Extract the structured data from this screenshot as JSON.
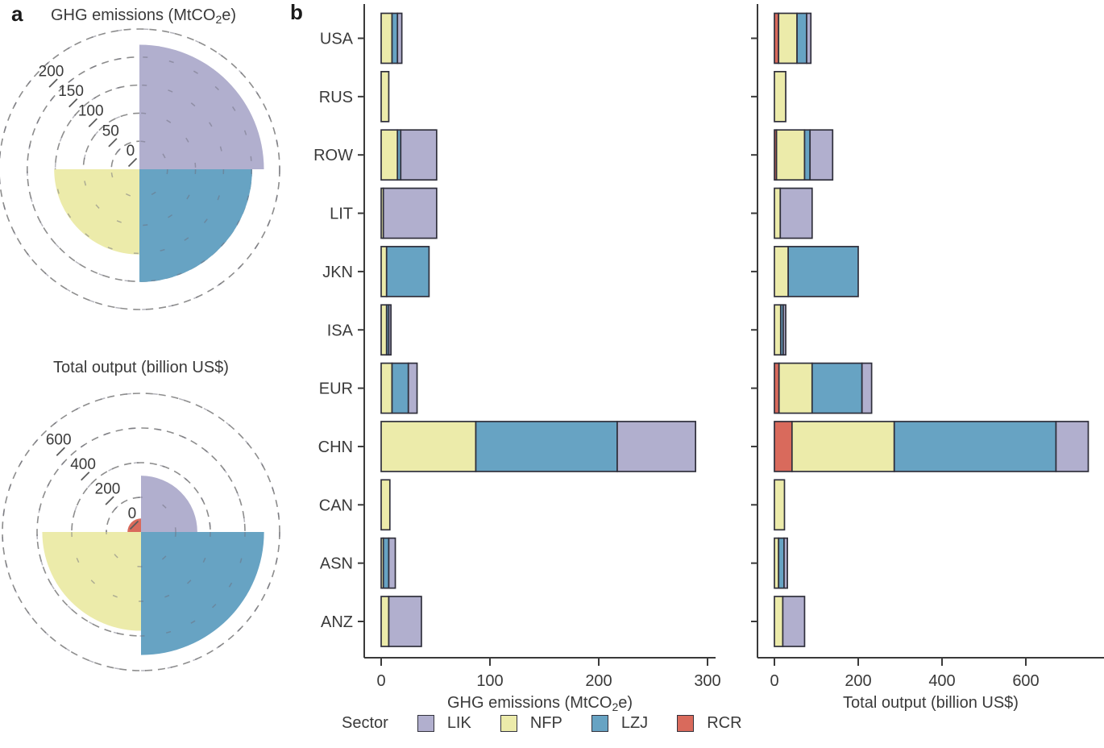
{
  "panels": {
    "a_label": "a",
    "b_label": "b"
  },
  "colors": {
    "LIK": "#b1afce",
    "NFP": "#ecebaa",
    "LZJ": "#67a3c3",
    "RCR": "#d96a5c",
    "bar_border": "#2f2f3b",
    "axis": "#3a3a3a",
    "grid": "#8d8d8d",
    "text": "#3a3a3a"
  },
  "legend": {
    "title": "Sector",
    "entries": [
      {
        "label": "LIK",
        "color": "LIK"
      },
      {
        "label": "NFP",
        "color": "NFP"
      },
      {
        "label": "LZJ",
        "color": "LZJ"
      },
      {
        "label": "RCR",
        "color": "RCR"
      }
    ]
  },
  "chart_data": [
    {
      "id": "rose-ghg",
      "type": "polar-bar",
      "title": {
        "pre": "GHG emissions (MtCO",
        "sub": "2",
        "post": "e)"
      },
      "tick_values": [
        0,
        50,
        100,
        150,
        200
      ],
      "outer_ring": 250,
      "grid": "dashed",
      "sectors": [
        {
          "name": "LIK",
          "quadrant": "N-E",
          "value": 222
        },
        {
          "name": "LZJ",
          "quadrant": "E-S",
          "value": 201
        },
        {
          "name": "NFP",
          "quadrant": "S-W",
          "value": 152
        },
        {
          "name": "RCR",
          "quadrant": "W-N",
          "value": 0
        }
      ]
    },
    {
      "id": "rose-output",
      "type": "polar-bar",
      "title": {
        "pre": "Total output (billion US$)",
        "sub": "",
        "post": ""
      },
      "tick_values": [
        0,
        200,
        400,
        600
      ],
      "outer_ring": 800,
      "grid": "dashed",
      "sectors": [
        {
          "name": "LIK",
          "quadrant": "N-E",
          "value": 325
        },
        {
          "name": "LZJ",
          "quadrant": "E-S",
          "value": 710
        },
        {
          "name": "NFP",
          "quadrant": "S-W",
          "value": 570
        },
        {
          "name": "RCR",
          "quadrant": "W-N",
          "value": 78
        }
      ]
    },
    {
      "id": "bars-ghg",
      "type": "bar",
      "orientation": "horizontal-stacked",
      "xlabel": {
        "pre": "GHG emissions (MtCO",
        "sub": "2",
        "post": "e)"
      },
      "x_ticks": [
        0,
        100,
        200,
        300
      ],
      "xlim": [
        0,
        320
      ],
      "categories": [
        "USA",
        "RUS",
        "ROW",
        "LIT",
        "JKN",
        "ISA",
        "EUR",
        "CHN",
        "CAN",
        "ASN",
        "ANZ"
      ],
      "series": [
        {
          "name": "RCR",
          "values": [
            0,
            0,
            0,
            0,
            0,
            0,
            0,
            0,
            0,
            0,
            0
          ]
        },
        {
          "name": "NFP",
          "values": [
            10,
            7,
            15,
            2,
            5,
            5,
            10,
            87,
            8,
            2,
            7
          ]
        },
        {
          "name": "LZJ",
          "values": [
            5,
            0,
            3,
            0,
            39,
            2,
            15,
            130,
            0,
            5,
            0
          ]
        },
        {
          "name": "LIK",
          "values": [
            4,
            0,
            33,
            49,
            0,
            2,
            8,
            72,
            0,
            6,
            30
          ]
        }
      ],
      "totals": [
        19,
        7,
        51,
        51,
        44,
        9,
        33,
        289,
        8,
        13,
        37
      ]
    },
    {
      "id": "bars-output",
      "type": "bar",
      "orientation": "horizontal-stacked",
      "xlabel": {
        "pre": "Total output (billion US$)",
        "sub": "",
        "post": ""
      },
      "x_ticks": [
        0,
        200,
        400,
        600
      ],
      "xlim": [
        0,
        790
      ],
      "categories": [
        "USA",
        "RUS",
        "ROW",
        "LIT",
        "JKN",
        "ISA",
        "EUR",
        "CHN",
        "CAN",
        "ASN",
        "ANZ"
      ],
      "series": [
        {
          "name": "RCR",
          "values": [
            10,
            0,
            5,
            0,
            0,
            0,
            11,
            42,
            0,
            0,
            0
          ]
        },
        {
          "name": "NFP",
          "values": [
            44,
            27,
            67,
            14,
            33,
            15,
            79,
            244,
            24,
            10,
            20
          ]
        },
        {
          "name": "LZJ",
          "values": [
            23,
            0,
            13,
            0,
            167,
            6,
            119,
            386,
            0,
            13,
            0
          ]
        },
        {
          "name": "LIK",
          "values": [
            10,
            0,
            54,
            76,
            0,
            6,
            23,
            77,
            0,
            8,
            52
          ]
        }
      ],
      "totals": [
        87,
        27,
        139,
        90,
        200,
        27,
        232,
        749,
        24,
        31,
        72
      ]
    }
  ]
}
